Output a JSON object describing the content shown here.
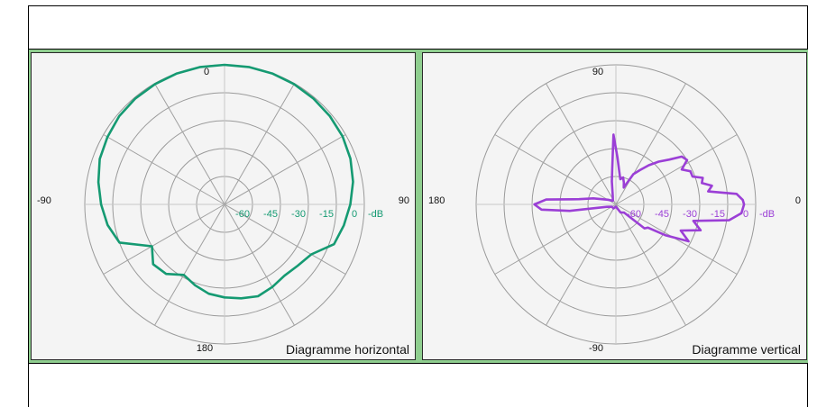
{
  "chart_data": [
    {
      "type": "polar",
      "title": "Diagramme horizontal",
      "unit": "-dB",
      "radial_ticks": [
        "-60",
        "-45",
        "-30",
        "-15",
        "0"
      ],
      "angle_labels": {
        "top": "0",
        "bottom": "180",
        "left": "-90",
        "right": "90"
      },
      "color": "#159a72",
      "series": [
        {
          "angles_deg": [
            -180,
            -170,
            -160,
            -150,
            -140,
            -130,
            -120,
            -110,
            -100,
            -90,
            -80,
            -70,
            -60,
            -50,
            -40,
            -30,
            -20,
            -10,
            0,
            10,
            20,
            30,
            40,
            50,
            60,
            70,
            80,
            90,
            100,
            110,
            120,
            130,
            140,
            150,
            160,
            170,
            180
          ],
          "values_db": [
            -20,
            -21,
            -23,
            -25,
            -21,
            -20,
            -24,
            -12,
            -9,
            -7,
            -5,
            -3,
            -2,
            -1,
            -0.5,
            -0.3,
            -0.1,
            0,
            0,
            0,
            -0.1,
            -0.3,
            -0.6,
            -1,
            -1.5,
            -2.5,
            -4,
            -6,
            -8,
            -10,
            -17,
            -19,
            -20,
            -19,
            -18,
            -19,
            -20
          ]
        }
      ]
    },
    {
      "type": "polar",
      "title": "Diagramme vertical",
      "unit": "-dB",
      "radial_ticks": [
        "-60",
        "-45",
        "-30",
        "-15",
        "0"
      ],
      "angle_labels": {
        "top": "90",
        "bottom": "-90",
        "left": "180",
        "right": "0"
      },
      "color": "#9b3fd6",
      "series": [
        {
          "angles_deg": [
            0,
            2,
            5,
            8,
            11,
            14,
            17,
            20,
            24,
            28,
            32,
            36,
            40,
            45,
            50,
            55,
            60,
            65,
            70,
            75,
            80,
            84,
            88,
            92,
            96,
            100,
            110,
            130,
            150,
            165,
            172,
            176,
            180,
            184,
            188,
            195,
            210,
            240,
            270,
            300,
            315,
            320,
            324,
            328,
            333,
            338,
            343,
            348,
            352,
            356,
            360
          ],
          "values_db": [
            -5,
            -5.5,
            -8,
            -20,
            -18,
            -22,
            -21,
            -25,
            -25,
            -28,
            -24,
            -25,
            -30,
            -34,
            -38,
            -42,
            -45,
            -52,
            -50,
            -48,
            -49,
            -46,
            -40,
            -30,
            -45,
            -50,
            -56,
            -58,
            -56,
            -50,
            -44,
            -30,
            -25,
            -28,
            -40,
            -56,
            -58,
            -58,
            -59,
            -56,
            -55,
            -44,
            -43,
            -35,
            -25,
            -30,
            -22,
            -26,
            -11,
            -6,
            -5
          ]
        }
      ]
    }
  ]
}
